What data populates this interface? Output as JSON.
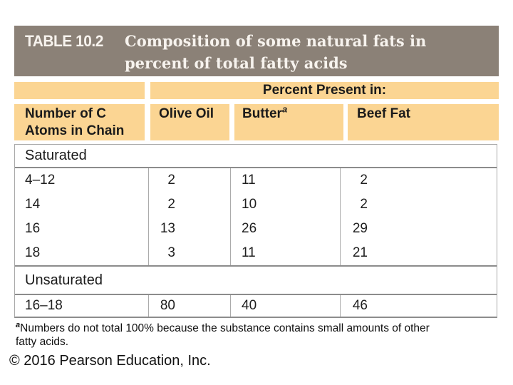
{
  "title_bar": {
    "table_label": "TABLE 10.2",
    "title_line1": "Composition of some natural fats in",
    "title_line2": "percent of total fatty acids"
  },
  "header": {
    "group_label": "Percent Present in:",
    "row_header_line1": "Number of C",
    "row_header_line2": "Atoms in Chain",
    "col_olive_oil": "Olive Oil",
    "col_butter": "Butter",
    "col_butter_sup": "a",
    "col_beef_fat": "Beef Fat"
  },
  "table": {
    "sections": [
      {
        "label": "Saturated",
        "rows": [
          {
            "chain": "4–12",
            "olive_oil": "2",
            "butter": "11",
            "beef_fat": "2"
          },
          {
            "chain": "14",
            "olive_oil": "2",
            "butter": "10",
            "beef_fat": "2"
          },
          {
            "chain": "16",
            "olive_oil": "13",
            "butter": "26",
            "beef_fat": "29"
          },
          {
            "chain": "18",
            "olive_oil": "3",
            "butter": "11",
            "beef_fat": "21"
          }
        ]
      },
      {
        "label": "Unsaturated",
        "rows": [
          {
            "chain": "16–18",
            "olive_oil": "80",
            "butter": "40",
            "beef_fat": "46"
          }
        ]
      }
    ]
  },
  "footnote": {
    "sup": "a",
    "line1": "Numbers do not total 100% because the substance contains small amounts of other",
    "line2": "fatty acids."
  },
  "copyright": "© 2016 Pearson Education, Inc.",
  "colors": {
    "title_bar_gray": "#8b8177",
    "header_tan": "#fbd593",
    "border_light": "#a9a9a9",
    "border_dark": "#8c8c8c",
    "title_text": "#f7f3ee",
    "body_text": "#1f1f1f"
  }
}
